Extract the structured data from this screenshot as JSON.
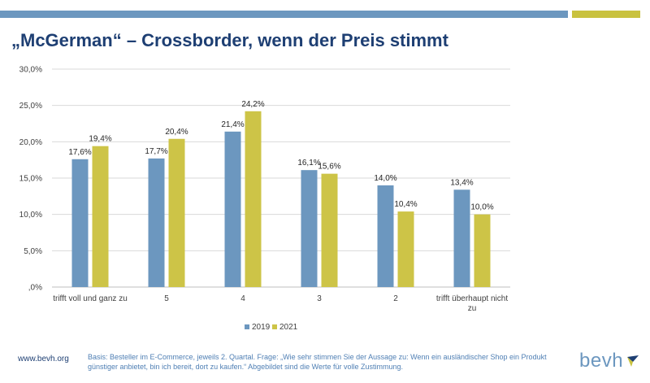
{
  "title": "„McGerman“ – Crossborder, wenn der Preis stimmt",
  "footer": {
    "url": "www.bevh.org",
    "note": "Basis: Besteller im E-Commerce, jeweils 2. Quartal. Frage: „Wie sehr stimmen Sie der Aussage zu: Wenn ein ausländischer Shop ein Produkt günstiger anbietet, bin ich bereit, dort zu kaufen.“ Abgebildet sind die Werte für volle Zustimmung."
  },
  "logo": {
    "text": "bevh",
    "icon": "bevh-logo-icon"
  },
  "colors": {
    "bar_2019": "#6c97bf",
    "bar_2021": "#cdc447",
    "title": "#1e3f73",
    "accent_bar_blue": "#6c97bf",
    "accent_bar_gold": "#c9c23f"
  },
  "chart_data": {
    "type": "bar",
    "title": "",
    "xlabel": "",
    "ylabel": "",
    "categories": [
      [
        "trifft voll und ganz zu"
      ],
      [
        "5"
      ],
      [
        "4"
      ],
      [
        "3"
      ],
      [
        "2"
      ],
      [
        "trifft überhaupt nicht",
        "zu"
      ]
    ],
    "series": [
      {
        "name": "2019",
        "values": [
          17.6,
          17.7,
          21.4,
          16.1,
          14.0,
          13.4
        ],
        "labels": [
          "17,6%",
          "17,7%",
          "21,4%",
          "16,1%",
          "14,0%",
          "13,4%"
        ]
      },
      {
        "name": "2021",
        "values": [
          19.4,
          20.4,
          24.2,
          15.6,
          10.4,
          10.0
        ],
        "labels": [
          "19,4%",
          "20,4%",
          "24,2%",
          "15,6%",
          "10,4%",
          "10,0%"
        ]
      }
    ],
    "ylim": [
      0,
      30
    ],
    "yticks": [
      0,
      5,
      10,
      15,
      20,
      25,
      30
    ],
    "ytick_labels": [
      ",0%",
      "5,0%",
      "10,0%",
      "15,0%",
      "20,0%",
      "25,0%",
      "30,0%"
    ],
    "grid": true,
    "legend_position": "bottom-center"
  }
}
